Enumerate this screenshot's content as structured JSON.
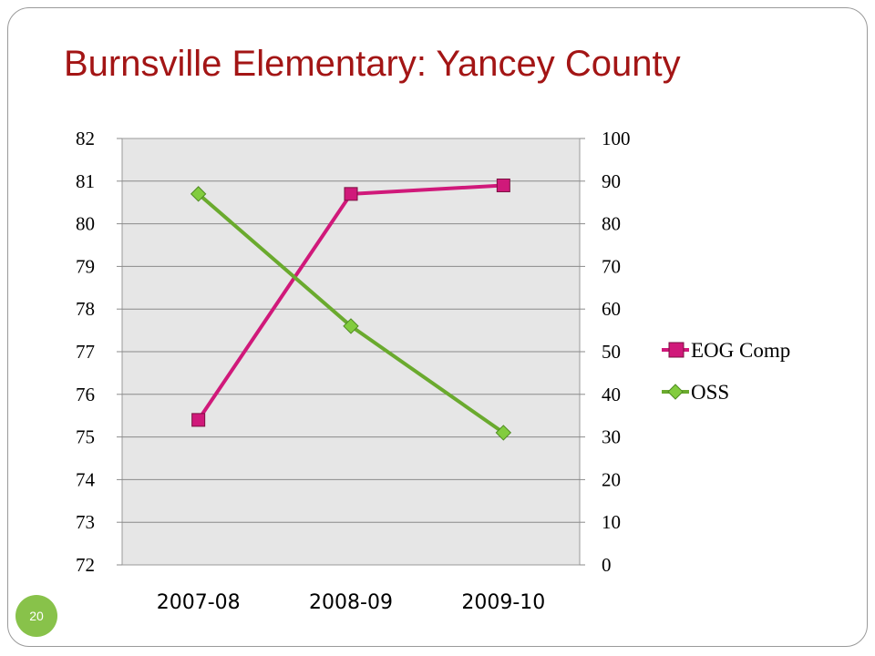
{
  "slide": {
    "title": "Burnsville Elementary:  Yancey County",
    "page_number": "20",
    "badge_color": "#88c24a",
    "title_color": "#a31515"
  },
  "chart_data": {
    "type": "line",
    "title": "",
    "categories": [
      "2007-08",
      "2008-09",
      "2009-10"
    ],
    "y_left": {
      "range": [
        72,
        82
      ],
      "ticks": [
        "72",
        "73",
        "74",
        "75",
        "76",
        "77",
        "78",
        "79",
        "80",
        "81",
        "82"
      ]
    },
    "y_right": {
      "range": [
        0,
        100
      ],
      "ticks": [
        "0",
        "10",
        "20",
        "30",
        "40",
        "50",
        "60",
        "70",
        "80",
        "90",
        "100"
      ]
    },
    "grid": true,
    "legend_position": "right",
    "plot_background": "#e6e6e6",
    "series": [
      {
        "name": "EOG Comp",
        "axis": "left",
        "values": [
          75.4,
          80.7,
          80.9
        ],
        "color": "#d0197a",
        "marker": "square"
      },
      {
        "name": "OSS",
        "axis": "right",
        "values": [
          87,
          56,
          31
        ],
        "color": "#6aaa2e",
        "marker": "diamond"
      }
    ]
  }
}
